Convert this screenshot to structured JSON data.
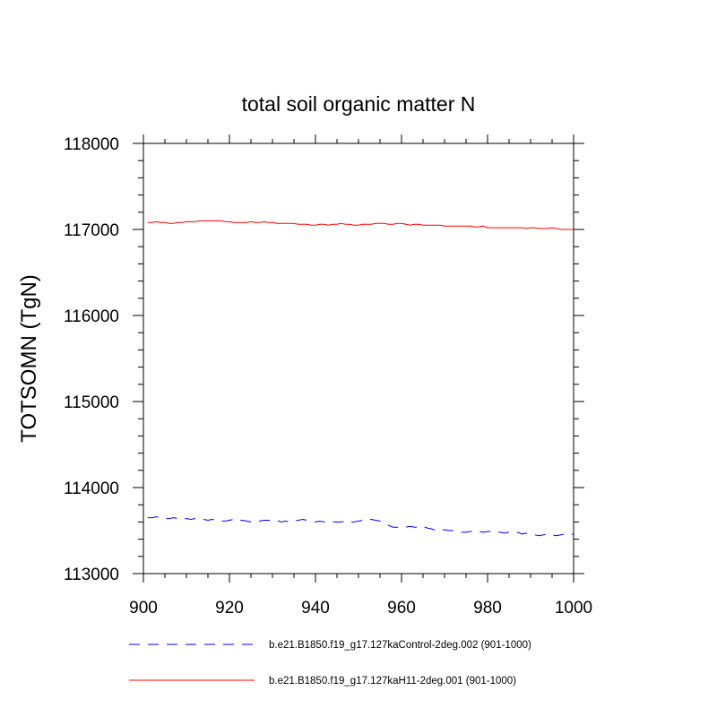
{
  "chart_data": {
    "type": "line",
    "title": "total soil organic matter N",
    "xlabel": "",
    "ylabel": "TOTSOMN  (TgN)",
    "xlim": [
      900,
      1000
    ],
    "ylim": [
      113000,
      118000
    ],
    "x_ticks": [
      900,
      920,
      940,
      960,
      980,
      1000
    ],
    "y_ticks": [
      113000,
      114000,
      115000,
      116000,
      117000,
      118000
    ],
    "x_tick_labels": [
      "900",
      "920",
      "940",
      "960",
      "980",
      "1000"
    ],
    "y_tick_labels": [
      "113000",
      "114000",
      "115000",
      "116000",
      "117000",
      "118000"
    ],
    "legend_position": "bottom",
    "series": [
      {
        "name": "b.e21.B1850.f19_g17.127kaControl-2deg.002 (901-1000)",
        "color": "#0000ff",
        "style": "dashed",
        "x": [
          901,
          902,
          903,
          904,
          905,
          906,
          907,
          908,
          909,
          910,
          911,
          912,
          913,
          914,
          915,
          916,
          917,
          918,
          919,
          920,
          921,
          922,
          923,
          924,
          925,
          926,
          927,
          928,
          929,
          930,
          931,
          932,
          933,
          934,
          935,
          936,
          937,
          938,
          939,
          940,
          941,
          942,
          943,
          944,
          945,
          946,
          947,
          948,
          949,
          950,
          951,
          952,
          953,
          954,
          955,
          956,
          957,
          958,
          959,
          960,
          961,
          962,
          963,
          964,
          965,
          966,
          967,
          968,
          969,
          970,
          971,
          972,
          973,
          974,
          975,
          976,
          977,
          978,
          979,
          980,
          981,
          982,
          983,
          984,
          985,
          986,
          987,
          988,
          989,
          990,
          991,
          992,
          993,
          994,
          995,
          996,
          997,
          998,
          999,
          1000
        ],
        "values": [
          113650,
          113650,
          113660,
          113650,
          113640,
          113640,
          113650,
          113640,
          113640,
          113640,
          113630,
          113640,
          113640,
          113630,
          113620,
          113630,
          113620,
          113610,
          113610,
          113620,
          113630,
          113620,
          113620,
          113610,
          113600,
          113610,
          113610,
          113620,
          113620,
          113620,
          113620,
          113600,
          113610,
          113600,
          113610,
          113620,
          113630,
          113620,
          113610,
          113600,
          113610,
          113600,
          113610,
          113600,
          113600,
          113600,
          113610,
          113600,
          113600,
          113610,
          113620,
          113620,
          113630,
          113620,
          113610,
          113580,
          113560,
          113540,
          113540,
          113540,
          113540,
          113550,
          113540,
          113540,
          113550,
          113530,
          113520,
          113500,
          113500,
          113510,
          113500,
          113500,
          113490,
          113480,
          113480,
          113490,
          113500,
          113490,
          113480,
          113490,
          113490,
          113480,
          113480,
          113470,
          113480,
          113470,
          113480,
          113460,
          113470,
          113450,
          113450,
          113440,
          113450,
          113460,
          113450,
          113440,
          113450,
          113460,
          113450,
          113460
        ]
      },
      {
        "name": "b.e21.B1850.f19_g17.127kaH11-2deg.001 (901-1000)",
        "color": "#ff0000",
        "style": "solid",
        "x": [
          901,
          902,
          903,
          904,
          905,
          906,
          907,
          908,
          909,
          910,
          911,
          912,
          913,
          914,
          915,
          916,
          917,
          918,
          919,
          920,
          921,
          922,
          923,
          924,
          925,
          926,
          927,
          928,
          929,
          930,
          931,
          932,
          933,
          934,
          935,
          936,
          937,
          938,
          939,
          940,
          941,
          942,
          943,
          944,
          945,
          946,
          947,
          948,
          949,
          950,
          951,
          952,
          953,
          954,
          955,
          956,
          957,
          958,
          959,
          960,
          961,
          962,
          963,
          964,
          965,
          966,
          967,
          968,
          969,
          970,
          971,
          972,
          973,
          974,
          975,
          976,
          977,
          978,
          979,
          980,
          981,
          982,
          983,
          984,
          985,
          986,
          987,
          988,
          989,
          990,
          991,
          992,
          993,
          994,
          995,
          996,
          997,
          998,
          999,
          1000
        ],
        "values": [
          117080,
          117080,
          117090,
          117080,
          117080,
          117070,
          117070,
          117080,
          117080,
          117090,
          117090,
          117090,
          117100,
          117100,
          117100,
          117100,
          117100,
          117100,
          117090,
          117090,
          117080,
          117080,
          117080,
          117080,
          117090,
          117080,
          117080,
          117090,
          117080,
          117080,
          117070,
          117070,
          117070,
          117070,
          117070,
          117060,
          117060,
          117060,
          117050,
          117050,
          117060,
          117060,
          117050,
          117060,
          117060,
          117070,
          117060,
          117060,
          117050,
          117050,
          117060,
          117060,
          117060,
          117070,
          117070,
          117070,
          117060,
          117060,
          117070,
          117070,
          117060,
          117050,
          117060,
          117060,
          117050,
          117050,
          117050,
          117050,
          117050,
          117040,
          117040,
          117040,
          117040,
          117040,
          117040,
          117040,
          117030,
          117030,
          117040,
          117020,
          117020,
          117020,
          117020,
          117020,
          117020,
          117020,
          117020,
          117020,
          117010,
          117020,
          117020,
          117010,
          117010,
          117010,
          117020,
          117010,
          117000,
          117000,
          117000,
          117000
        ]
      }
    ]
  }
}
